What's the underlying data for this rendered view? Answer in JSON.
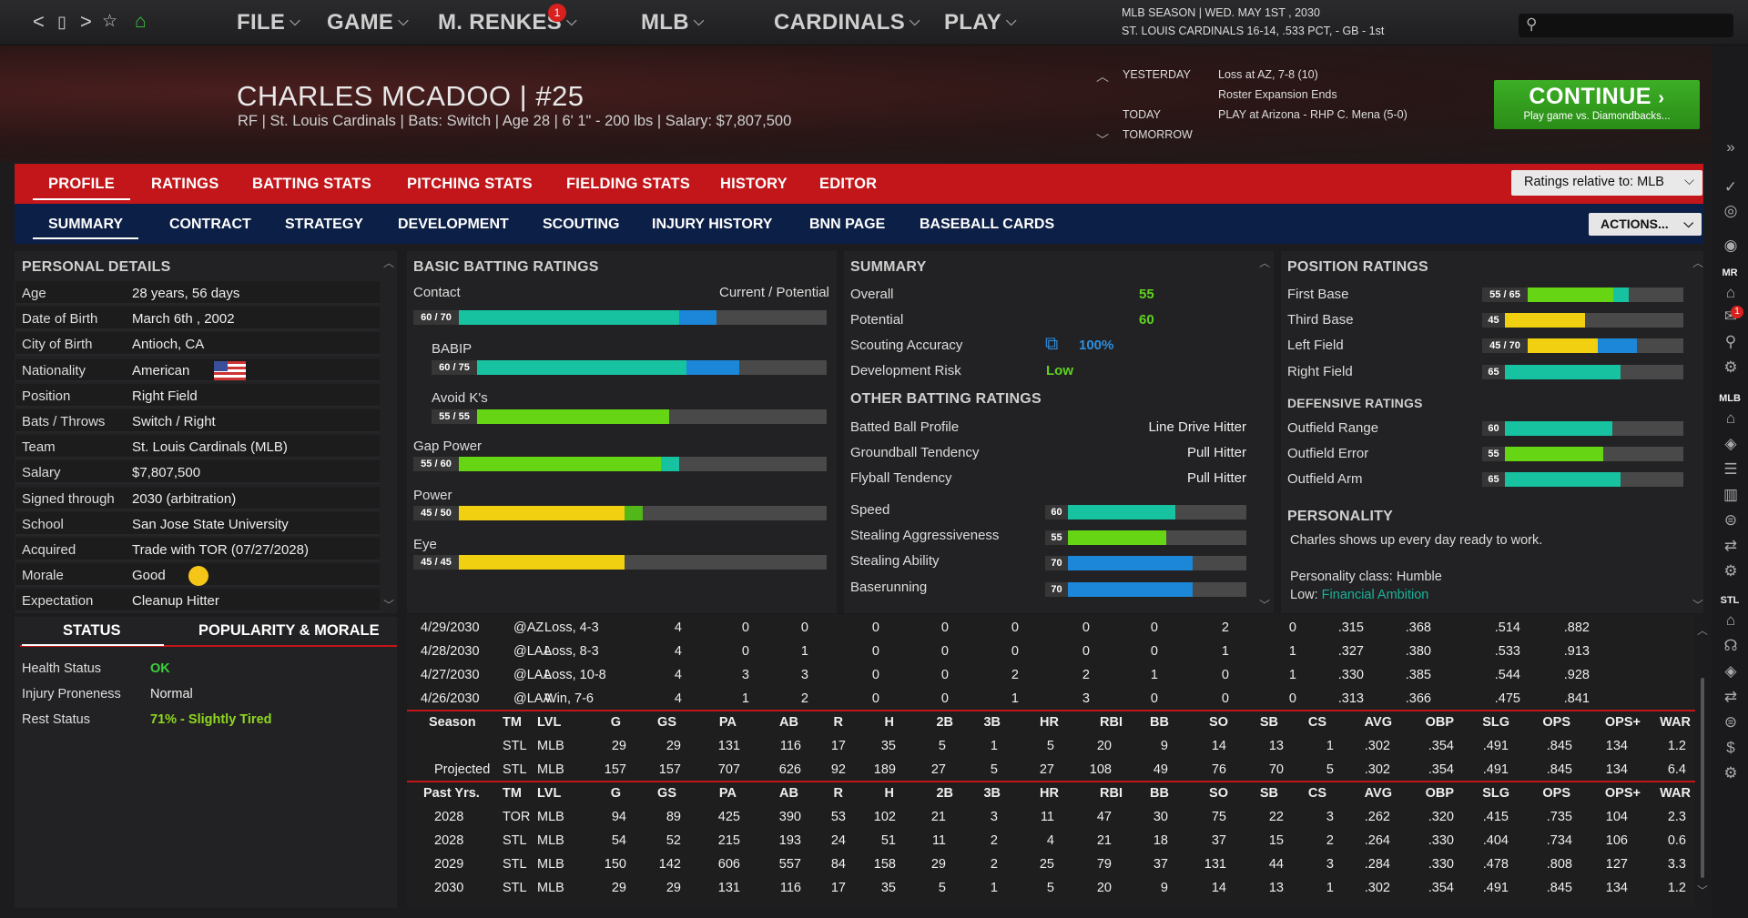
{
  "nav": {
    "back": "<",
    "page": "▯",
    "forward": ">",
    "star": "☆",
    "home": "⌂"
  },
  "menus": [
    {
      "label": "FILE"
    },
    {
      "label": "GAME"
    },
    {
      "label": "M. RENKES"
    },
    {
      "label": "MLB"
    },
    {
      "label": "CARDINALS"
    },
    {
      "label": "PLAY"
    }
  ],
  "manager_badge": "1",
  "season": {
    "line1": "MLB SEASON  |  WED. MAY 1ST , 2030",
    "line2": "ST. LOUIS CARDINALS  16-14, .533 PCT, - GB - 1st"
  },
  "player": {
    "name": "CHARLES MCADOO  |  #25",
    "subtitle": "RF | St. Louis Cardinals  |  Bats: Switch  |  Age 28  |  6' 1\" - 200 lbs  |  Salary: $7,807,500"
  },
  "schedule": {
    "yesterday_label": "YESTERDAY",
    "yesterday_1": "Loss at AZ, 7-8 (10)",
    "yesterday_2": "Roster Expansion Ends",
    "today_label": "TODAY",
    "today_1": "PLAY at Arizona - RHP C. Mena (5-0)",
    "tomorrow_label": "TOMORROW"
  },
  "continue": {
    "label": "CONTINUE",
    "sub": "Play game vs. Diamondbacks..."
  },
  "tabs_main": [
    "PROFILE",
    "RATINGS",
    "BATTING STATS",
    "PITCHING STATS",
    "FIELDING STATS",
    "HISTORY",
    "EDITOR"
  ],
  "ratings_relative": "Ratings relative to: MLB",
  "tabs_sub": [
    "SUMMARY",
    "CONTRACT",
    "STRATEGY",
    "DEVELOPMENT",
    "SCOUTING",
    "INJURY HISTORY",
    "BNN PAGE",
    "BASEBALL CARDS"
  ],
  "actions_label": "ACTIONS...",
  "personal": {
    "title": "PERSONAL DETAILS",
    "rows": [
      {
        "label": "Age",
        "value": "28 years, 56 days"
      },
      {
        "label": "Date of Birth",
        "value": "March 6th , 2002"
      },
      {
        "label": "City of Birth",
        "value": "Antioch, CA"
      },
      {
        "label": "Nationality",
        "value": "American"
      },
      {
        "label": "Position",
        "value": "Right Field"
      },
      {
        "label": "Bats / Throws",
        "value": "Switch / Right"
      },
      {
        "label": "Team",
        "value": "St. Louis Cardinals (MLB)"
      },
      {
        "label": "Salary",
        "value": "$7,807,500"
      },
      {
        "label": "Signed through",
        "value": "2030 (arbitration)"
      },
      {
        "label": "School",
        "value": "San Jose State University"
      },
      {
        "label": "Acquired",
        "value": "Trade with TOR (07/27/2028)"
      },
      {
        "label": "Morale",
        "value": "Good"
      },
      {
        "label": "Expectation",
        "value": "Cleanup Hitter"
      }
    ]
  },
  "batting": {
    "title": "BASIC BATTING RATINGS",
    "cp_label": "Current / Potential",
    "items": [
      {
        "label": "Contact",
        "text": "60 / 70",
        "cur": 0.6,
        "pot": 0.7,
        "cur_color": "#17c2a0",
        "pot_color": "#1c86d8"
      },
      {
        "label": "BABIP",
        "text": "60 / 75",
        "cur": 0.6,
        "pot": 0.75,
        "cur_color": "#17c2a0",
        "pot_color": "#1c86d8"
      },
      {
        "label": "Avoid K's",
        "text": "55 / 55",
        "cur": 0.55,
        "pot": 0.55,
        "cur_color": "#66d614",
        "pot_color": "#66d614"
      },
      {
        "label": "Gap Power",
        "text": "55 / 60",
        "cur": 0.55,
        "pot": 0.6,
        "cur_color": "#66d614",
        "pot_color": "#17c2a0"
      },
      {
        "label": "Power",
        "text": "45 / 50",
        "cur": 0.45,
        "pot": 0.5,
        "cur_color": "#f0d010",
        "pot_color": "#52b81a"
      },
      {
        "label": "Eye",
        "text": "45 / 45",
        "cur": 0.45,
        "pot": 0.45,
        "cur_color": "#f0d010",
        "pot_color": "#f0d010"
      }
    ]
  },
  "summary": {
    "title": "SUMMARY",
    "overall_label": "Overall",
    "overall": "55",
    "potential_label": "Potential",
    "potential": "60",
    "scouting_label": "Scouting Accuracy",
    "scouting": "100%",
    "devrisk_label": "Development Risk",
    "devrisk": "Low",
    "other_title": "OTHER BATTING RATINGS",
    "other": [
      {
        "label": "Batted Ball Profile",
        "value": "Line Drive Hitter"
      },
      {
        "label": "Groundball Tendency",
        "value": "Pull Hitter"
      },
      {
        "label": "Flyball Tendency",
        "value": "Pull Hitter"
      }
    ],
    "running": [
      {
        "label": "Speed",
        "text": "60",
        "val": 0.6,
        "color": "#17c2a0"
      },
      {
        "label": "Stealing Aggressiveness",
        "text": "55",
        "val": 0.55,
        "color": "#66d614"
      },
      {
        "label": "Stealing Ability",
        "text": "70",
        "val": 0.7,
        "color": "#1c86d8"
      },
      {
        "label": "Baserunning",
        "text": "70",
        "val": 0.7,
        "color": "#1c86d8"
      }
    ]
  },
  "position": {
    "title": "POSITION RATINGS",
    "items": [
      {
        "label": "First Base",
        "text": "55 / 65",
        "cur": 0.55,
        "pot": 0.65,
        "cur_color": "#66d614",
        "pot_color": "#17c2a0"
      },
      {
        "label": "Third Base",
        "text": "45",
        "cur": 0.45,
        "pot": 0.45,
        "cur_color": "#f0d010",
        "pot_color": "#f0d010"
      },
      {
        "label": "Left Field",
        "text": "45 / 70",
        "cur": 0.45,
        "pot": 0.7,
        "cur_color": "#f0d010",
        "pot_color": "#1c86d8"
      },
      {
        "label": "Right Field",
        "text": "65",
        "cur": 0.65,
        "pot": 0.65,
        "cur_color": "#17c2a0",
        "pot_color": "#17c2a0"
      }
    ],
    "def_title": "DEFENSIVE RATINGS",
    "def": [
      {
        "label": "Outfield Range",
        "text": "60",
        "val": 0.6,
        "color": "#17c2a0"
      },
      {
        "label": "Outfield Error",
        "text": "55",
        "val": 0.55,
        "color": "#66d614"
      },
      {
        "label": "Outfield Arm",
        "text": "65",
        "val": 0.65,
        "color": "#17c2a0"
      }
    ],
    "personality_title": "PERSONALITY",
    "personality_text": "Charles shows up every day ready to work.",
    "class_line": "Personality class: Humble",
    "low_label": "Low:",
    "low_value": "Financial Ambition"
  },
  "status": {
    "tab1": "STATUS",
    "tab2": "POPULARITY & MORALE",
    "rows": [
      {
        "label": "Health Status",
        "value": "OK",
        "color": "#3ccf3c"
      },
      {
        "label": "Injury Proneness",
        "value": "Normal",
        "color": "#eeeeee"
      },
      {
        "label": "Rest Status",
        "value": "71% - Slightly Tired",
        "color": "#8fd81e"
      }
    ]
  },
  "stats": {
    "games": [
      [
        "4/29/2030",
        "@AZ",
        "Loss, 4-3",
        "4",
        "0",
        "0",
        "0",
        "0",
        "0",
        "0",
        "0",
        "2",
        "0",
        ".315",
        ".368",
        ".514",
        ".882"
      ],
      [
        "4/28/2030",
        "@LAA",
        "Loss, 8-3",
        "4",
        "0",
        "1",
        "0",
        "0",
        "0",
        "0",
        "0",
        "1",
        "1",
        ".327",
        ".380",
        ".533",
        ".913"
      ],
      [
        "4/27/2030",
        "@LAA",
        "Loss, 10-8",
        "4",
        "3",
        "3",
        "0",
        "0",
        "2",
        "2",
        "1",
        "0",
        "1",
        ".330",
        ".385",
        ".544",
        ".928"
      ],
      [
        "4/26/2030",
        "@LAA",
        "Win, 7-6",
        "4",
        "1",
        "2",
        "0",
        "0",
        "1",
        "3",
        "0",
        "0",
        "0",
        ".313",
        ".366",
        ".475",
        ".841"
      ]
    ],
    "season_header": [
      "Season",
      "TM",
      "LVL",
      "G",
      "GS",
      "PA",
      "AB",
      "R",
      "H",
      "2B",
      "3B",
      "HR",
      "RBI",
      "BB",
      "SO",
      "SB",
      "CS",
      "AVG",
      "OBP",
      "SLG",
      "OPS",
      "OPS+",
      "WAR"
    ],
    "season_rows": [
      [
        "",
        "STL",
        "MLB",
        "29",
        "29",
        "131",
        "116",
        "17",
        "35",
        "5",
        "1",
        "5",
        "20",
        "9",
        "14",
        "13",
        "1",
        ".302",
        ".354",
        ".491",
        ".845",
        "134",
        "1.2"
      ],
      [
        "Projected",
        "STL",
        "MLB",
        "157",
        "157",
        "707",
        "626",
        "92",
        "189",
        "27",
        "5",
        "27",
        "108",
        "49",
        "76",
        "70",
        "5",
        ".302",
        ".354",
        ".491",
        ".845",
        "134",
        "6.4"
      ]
    ],
    "past_header": [
      "Past Yrs.",
      "TM",
      "LVL",
      "G",
      "GS",
      "PA",
      "AB",
      "R",
      "H",
      "2B",
      "3B",
      "HR",
      "RBI",
      "BB",
      "SO",
      "SB",
      "CS",
      "AVG",
      "OBP",
      "SLG",
      "OPS",
      "OPS+",
      "WAR"
    ],
    "past_rows": [
      [
        "2028",
        "TOR",
        "MLB",
        "94",
        "89",
        "425",
        "390",
        "53",
        "102",
        "21",
        "3",
        "11",
        "47",
        "30",
        "75",
        "22",
        "3",
        ".262",
        ".320",
        ".415",
        ".735",
        "104",
        "2.3"
      ],
      [
        "2028",
        "STL",
        "MLB",
        "54",
        "52",
        "215",
        "193",
        "24",
        "51",
        "11",
        "2",
        "4",
        "21",
        "18",
        "37",
        "15",
        "2",
        ".264",
        ".330",
        ".404",
        ".734",
        "106",
        "0.6"
      ],
      [
        "2029",
        "STL",
        "MLB",
        "150",
        "142",
        "606",
        "557",
        "84",
        "158",
        "29",
        "2",
        "25",
        "79",
        "37",
        "131",
        "44",
        "3",
        ".284",
        ".330",
        ".478",
        ".808",
        "127",
        "3.3"
      ],
      [
        "2030",
        "STL",
        "MLB",
        "29",
        "29",
        "131",
        "116",
        "17",
        "35",
        "5",
        "1",
        "5",
        "20",
        "9",
        "14",
        "13",
        "1",
        ".302",
        ".354",
        ".491",
        ".845",
        "134",
        "1.2"
      ]
    ]
  },
  "sidebar": {
    "mr": "MR",
    "mlb": "MLB",
    "stl": "STL",
    "notif_badge": "1"
  }
}
